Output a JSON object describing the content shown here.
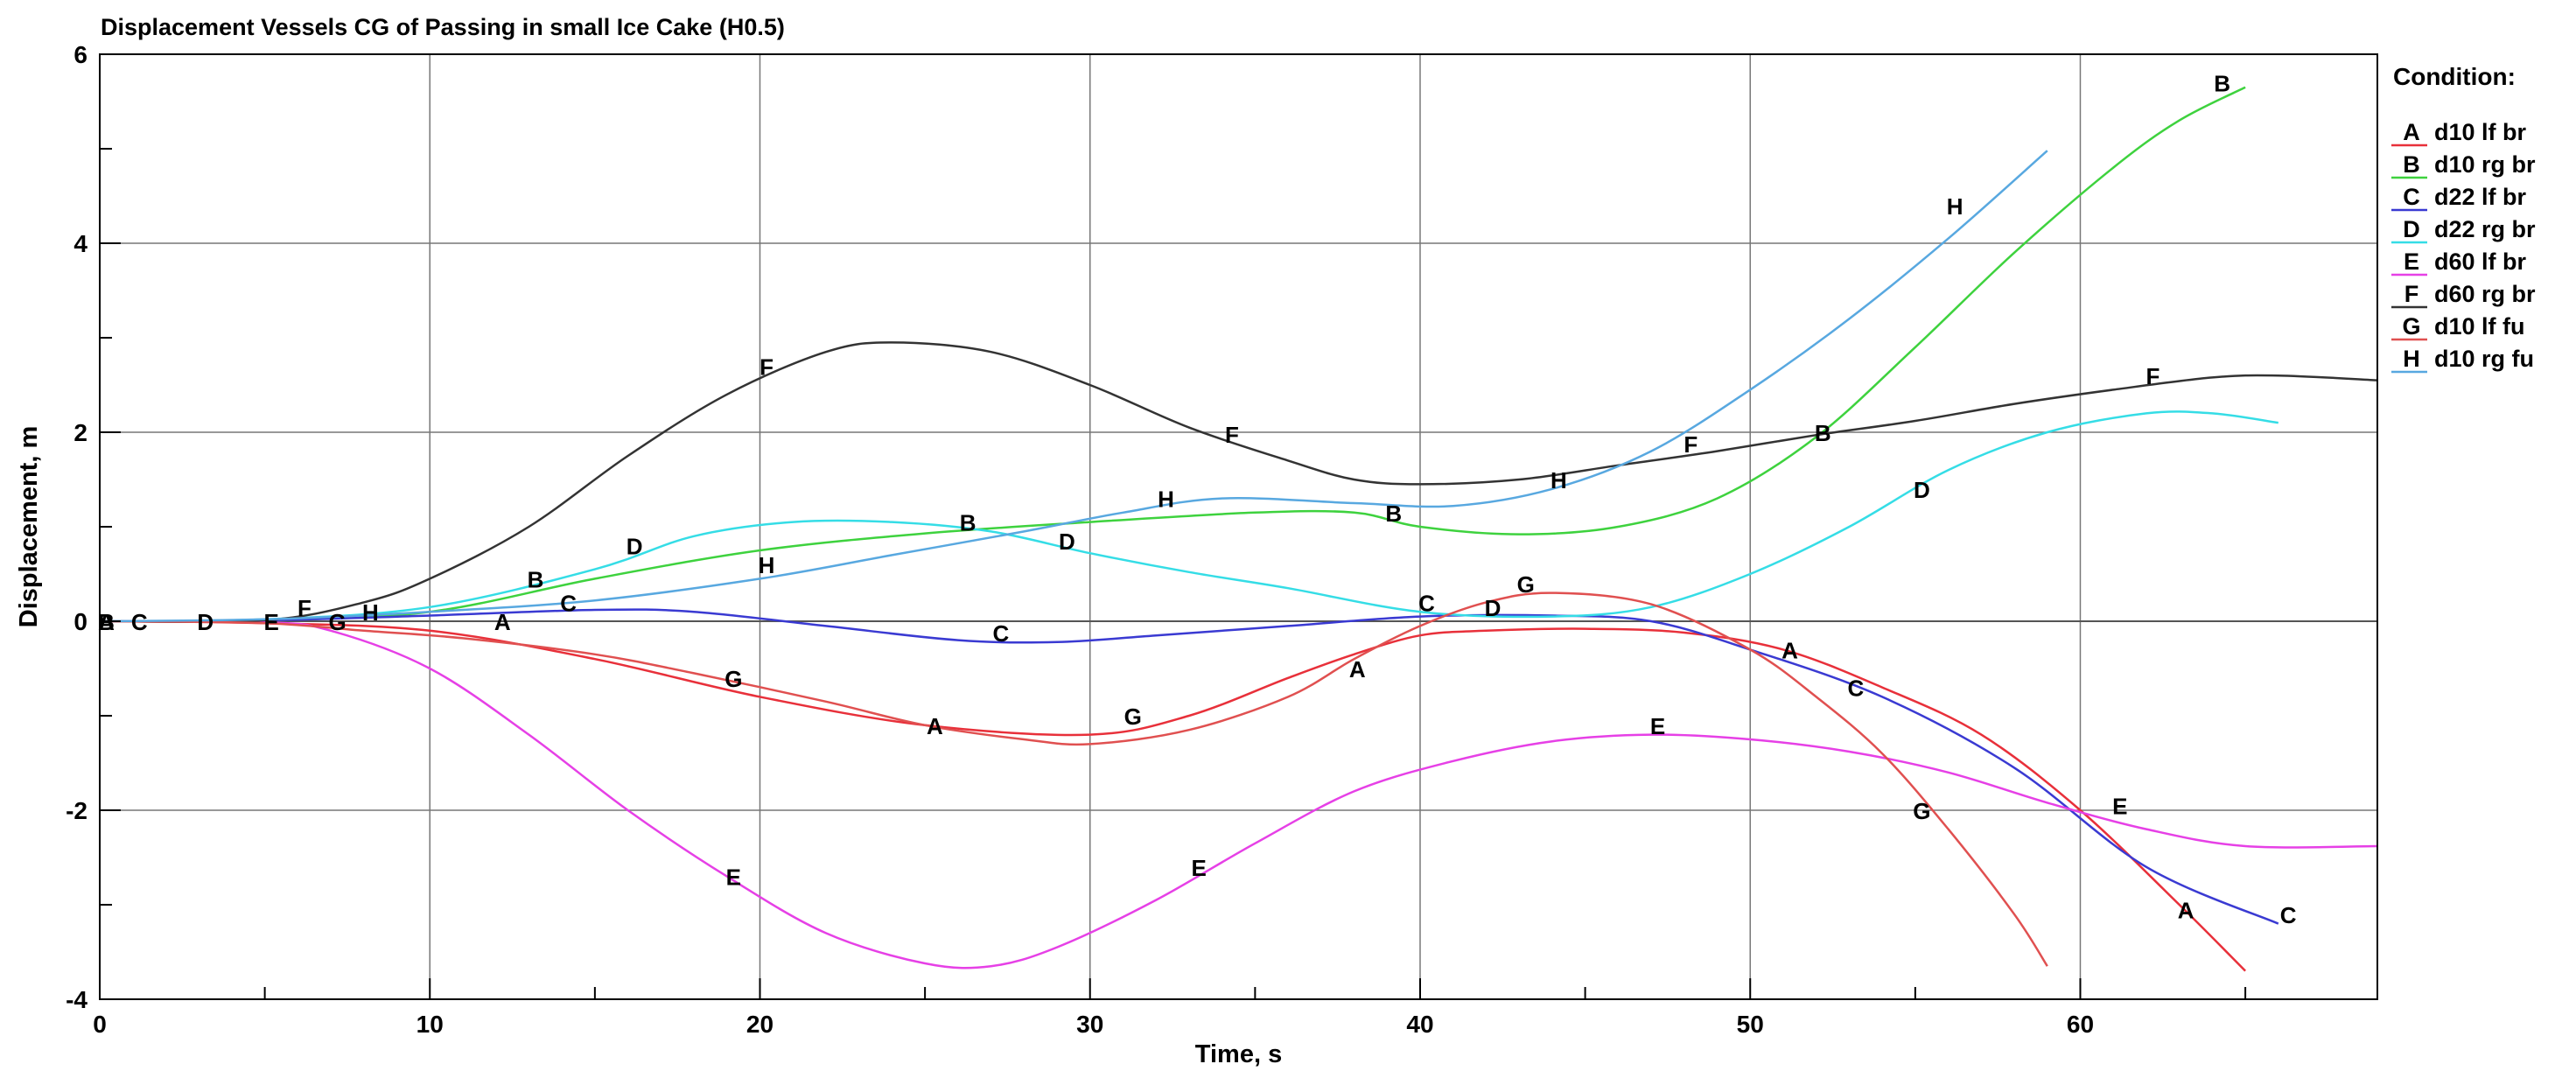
{
  "chart_data": {
    "type": "line",
    "title": "Displacement Vessels CG of Passing in small Ice Cake (H0.5)",
    "xlabel": "Time, s",
    "ylabel": "Displacement, m",
    "xlim": [
      0,
      69
    ],
    "ylim": [
      -4,
      6
    ],
    "xticks": [
      0,
      10,
      20,
      30,
      40,
      50,
      60
    ],
    "xtick_labels": [
      "0",
      "10",
      "20",
      "30",
      "40",
      "50",
      "60"
    ],
    "yticks": [
      -4,
      -2,
      0,
      2,
      4,
      6
    ],
    "ytick_labels": [
      "-4",
      "-2",
      "0",
      "2",
      "4",
      "6"
    ],
    "grid": true,
    "legend": {
      "title": "Condition:",
      "placement": "right",
      "entries": [
        {
          "letter": "A",
          "name": "d10 lf br"
        },
        {
          "letter": "B",
          "name": "d10 rg br"
        },
        {
          "letter": "C",
          "name": "d22 lf br"
        },
        {
          "letter": "D",
          "name": "d22 rg br"
        },
        {
          "letter": "E",
          "name": "d60 lf br"
        },
        {
          "letter": "F",
          "name": "d60 rg br"
        },
        {
          "letter": "G",
          "name": "d10 lf fu"
        },
        {
          "letter": "H",
          "name": "d10 rg fu"
        }
      ]
    },
    "series": [
      {
        "name": "d10 lf br",
        "letter": "A",
        "color": "#e8303a",
        "points": [
          [
            0,
            0
          ],
          [
            5,
            -0.02
          ],
          [
            10,
            -0.1
          ],
          [
            15,
            -0.4
          ],
          [
            20,
            -0.8
          ],
          [
            25,
            -1.1
          ],
          [
            30,
            -1.2
          ],
          [
            33,
            -1.0
          ],
          [
            36,
            -0.6
          ],
          [
            38,
            -0.35
          ],
          [
            40,
            -0.15
          ],
          [
            42,
            -0.1
          ],
          [
            45,
            -0.08
          ],
          [
            48,
            -0.12
          ],
          [
            51,
            -0.3
          ],
          [
            54,
            -0.7
          ],
          [
            57,
            -1.2
          ],
          [
            60,
            -2.0
          ],
          [
            63,
            -3.0
          ],
          [
            65,
            -3.7
          ]
        ],
        "labels": [
          [
            0.2,
            0
          ],
          [
            12.2,
            0
          ],
          [
            25.3,
            -1.1
          ],
          [
            38.1,
            -0.5
          ],
          [
            51.2,
            -0.3
          ],
          [
            63.2,
            -3.05
          ]
        ]
      },
      {
        "name": "d10 rg br",
        "letter": "B",
        "color": "#3ed23e",
        "points": [
          [
            0,
            0
          ],
          [
            5,
            0.01
          ],
          [
            10,
            0.1
          ],
          [
            15,
            0.45
          ],
          [
            20,
            0.75
          ],
          [
            25,
            0.93
          ],
          [
            30,
            1.05
          ],
          [
            35,
            1.15
          ],
          [
            38,
            1.15
          ],
          [
            40,
            1.0
          ],
          [
            43,
            0.92
          ],
          [
            46,
            1.0
          ],
          [
            49,
            1.3
          ],
          [
            52,
            1.95
          ],
          [
            55,
            2.9
          ],
          [
            58,
            3.9
          ],
          [
            61,
            4.8
          ],
          [
            63,
            5.3
          ],
          [
            65,
            5.65
          ]
        ],
        "labels": [
          [
            0.2,
            0
          ],
          [
            13.2,
            0.45
          ],
          [
            26.3,
            1.05
          ],
          [
            39.2,
            1.15
          ],
          [
            52.2,
            2.0
          ],
          [
            64.3,
            5.7
          ]
        ]
      },
      {
        "name": "d22 lf br",
        "letter": "C",
        "color": "#3a3ad2",
        "points": [
          [
            0,
            0
          ],
          [
            5,
            0.01
          ],
          [
            10,
            0.06
          ],
          [
            15,
            0.12
          ],
          [
            18,
            0.1
          ],
          [
            22,
            -0.05
          ],
          [
            26,
            -0.2
          ],
          [
            29,
            -0.22
          ],
          [
            32,
            -0.15
          ],
          [
            36,
            -0.05
          ],
          [
            40,
            0.05
          ],
          [
            44,
            0.06
          ],
          [
            47,
            0.0
          ],
          [
            50,
            -0.3
          ],
          [
            54,
            -0.8
          ],
          [
            58,
            -1.55
          ],
          [
            62,
            -2.6
          ],
          [
            66,
            -3.2
          ]
        ],
        "labels": [
          [
            1.2,
            0
          ],
          [
            14.2,
            0.2
          ],
          [
            27.3,
            -0.12
          ],
          [
            40.2,
            0.2
          ],
          [
            53.2,
            -0.7
          ],
          [
            66.3,
            -3.1
          ]
        ]
      },
      {
        "name": "d22 rg br",
        "letter": "D",
        "color": "#35dde6",
        "points": [
          [
            0,
            0
          ],
          [
            5,
            0.02
          ],
          [
            10,
            0.15
          ],
          [
            15,
            0.55
          ],
          [
            18,
            0.9
          ],
          [
            21,
            1.05
          ],
          [
            24,
            1.05
          ],
          [
            27,
            0.95
          ],
          [
            30,
            0.72
          ],
          [
            33,
            0.52
          ],
          [
            36,
            0.35
          ],
          [
            40,
            0.1
          ],
          [
            44,
            0.05
          ],
          [
            47,
            0.15
          ],
          [
            50,
            0.5
          ],
          [
            53,
            1.0
          ],
          [
            56,
            1.6
          ],
          [
            59,
            2.0
          ],
          [
            62,
            2.2
          ],
          [
            64,
            2.2
          ],
          [
            66,
            2.1
          ]
        ],
        "labels": [
          [
            3.2,
            0
          ],
          [
            16.2,
            0.8
          ],
          [
            29.3,
            0.85
          ],
          [
            42.2,
            0.15
          ],
          [
            55.2,
            1.4
          ]
        ]
      },
      {
        "name": "d60 lf br",
        "letter": "E",
        "color": "#e640e6",
        "points": [
          [
            0,
            0
          ],
          [
            5,
            -0.01
          ],
          [
            7,
            -0.1
          ],
          [
            10,
            -0.5
          ],
          [
            13,
            -1.2
          ],
          [
            16,
            -2.0
          ],
          [
            19,
            -2.7
          ],
          [
            22,
            -3.3
          ],
          [
            25,
            -3.62
          ],
          [
            27,
            -3.65
          ],
          [
            29,
            -3.45
          ],
          [
            32,
            -2.95
          ],
          [
            35,
            -2.35
          ],
          [
            38,
            -1.8
          ],
          [
            41,
            -1.48
          ],
          [
            44,
            -1.27
          ],
          [
            47,
            -1.2
          ],
          [
            50,
            -1.25
          ],
          [
            53,
            -1.38
          ],
          [
            56,
            -1.6
          ],
          [
            59,
            -1.92
          ],
          [
            62,
            -2.2
          ],
          [
            65,
            -2.38
          ],
          [
            69,
            -2.38
          ]
        ],
        "labels": [
          [
            5.2,
            0
          ],
          [
            19.2,
            -2.7
          ],
          [
            33.3,
            -2.6
          ],
          [
            47.2,
            -1.1
          ],
          [
            61.2,
            -1.95
          ]
        ]
      },
      {
        "name": "d60 rg br",
        "letter": "F",
        "color": "#333333",
        "points": [
          [
            0,
            0
          ],
          [
            5,
            0.01
          ],
          [
            8,
            0.2
          ],
          [
            10,
            0.45
          ],
          [
            13,
            1.0
          ],
          [
            16,
            1.75
          ],
          [
            19,
            2.4
          ],
          [
            22,
            2.85
          ],
          [
            24,
            2.95
          ],
          [
            27,
            2.85
          ],
          [
            30,
            2.5
          ],
          [
            33,
            2.05
          ],
          [
            36,
            1.7
          ],
          [
            38,
            1.5
          ],
          [
            40,
            1.45
          ],
          [
            43,
            1.5
          ],
          [
            46,
            1.65
          ],
          [
            49,
            1.8
          ],
          [
            52,
            1.97
          ],
          [
            55,
            2.12
          ],
          [
            58,
            2.3
          ],
          [
            61,
            2.45
          ],
          [
            64,
            2.58
          ],
          [
            66,
            2.6
          ],
          [
            69,
            2.55
          ]
        ],
        "labels": [
          [
            6.2,
            0.15
          ],
          [
            20.2,
            2.7
          ],
          [
            34.3,
            1.98
          ],
          [
            48.2,
            1.88
          ],
          [
            62.2,
            2.6
          ]
        ]
      },
      {
        "name": "d10 lf fu",
        "letter": "G",
        "color": "#e05050",
        "points": [
          [
            0,
            0
          ],
          [
            5,
            -0.02
          ],
          [
            8,
            -0.1
          ],
          [
            11,
            -0.18
          ],
          [
            15,
            -0.35
          ],
          [
            18,
            -0.55
          ],
          [
            22,
            -0.85
          ],
          [
            25,
            -1.1
          ],
          [
            28,
            -1.25
          ],
          [
            30,
            -1.3
          ],
          [
            33,
            -1.15
          ],
          [
            36,
            -0.8
          ],
          [
            38,
            -0.4
          ],
          [
            40,
            -0.05
          ],
          [
            42,
            0.2
          ],
          [
            44,
            0.3
          ],
          [
            47,
            0.18
          ],
          [
            50,
            -0.3
          ],
          [
            52,
            -0.8
          ],
          [
            54,
            -1.4
          ],
          [
            56,
            -2.2
          ],
          [
            58,
            -3.1
          ],
          [
            59,
            -3.65
          ]
        ],
        "labels": [
          [
            7.2,
            0
          ],
          [
            19.2,
            -0.6
          ],
          [
            31.3,
            -1.0
          ],
          [
            43.2,
            0.4
          ],
          [
            55.2,
            -2.0
          ]
        ]
      },
      {
        "name": "d10 rg fu",
        "letter": "H",
        "color": "#58a8e0",
        "points": [
          [
            0,
            0
          ],
          [
            5,
            0.02
          ],
          [
            10,
            0.1
          ],
          [
            15,
            0.22
          ],
          [
            20,
            0.45
          ],
          [
            24,
            0.7
          ],
          [
            28,
            0.95
          ],
          [
            31,
            1.15
          ],
          [
            34,
            1.3
          ],
          [
            38,
            1.25
          ],
          [
            41,
            1.22
          ],
          [
            44,
            1.4
          ],
          [
            47,
            1.8
          ],
          [
            50,
            2.45
          ],
          [
            53,
            3.2
          ],
          [
            56,
            4.05
          ],
          [
            59,
            4.98
          ]
        ],
        "labels": [
          [
            8.2,
            0.1
          ],
          [
            20.2,
            0.6
          ],
          [
            32.3,
            1.3
          ],
          [
            44.2,
            1.5
          ],
          [
            56.2,
            4.4
          ]
        ]
      }
    ]
  }
}
